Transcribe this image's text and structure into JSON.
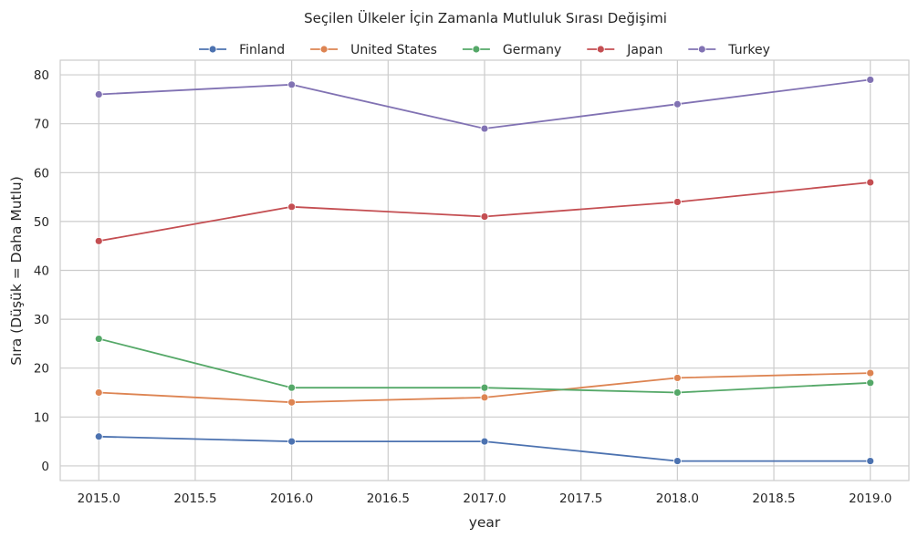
{
  "chart_data": {
    "type": "line",
    "title": "Seçilen Ülkeler İçin Zamanla Mutluluk Sırası Değişimi",
    "xlabel": "year",
    "ylabel": "Sıra (Düşük = Daha Mutlu)",
    "x": [
      2015,
      2016,
      2017,
      2018,
      2019
    ],
    "xlim": [
      2014.8,
      2019.2
    ],
    "ylim": [
      83,
      -3
    ],
    "y_inverted": true,
    "x_ticks": [
      "2015.0",
      "2015.5",
      "2016.0",
      "2016.5",
      "2017.0",
      "2017.5",
      "2018.0",
      "2018.5",
      "2019.0"
    ],
    "y_ticks": [
      "0",
      "10",
      "20",
      "30",
      "40",
      "50",
      "60",
      "70",
      "80"
    ],
    "grid": true,
    "legend_position": "top-center",
    "series": [
      {
        "name": "Finland",
        "color": "#4c72b0",
        "values": [
          6,
          5,
          5,
          1,
          1
        ]
      },
      {
        "name": "United States",
        "color": "#dd8452",
        "values": [
          15,
          13,
          14,
          18,
          19
        ]
      },
      {
        "name": "Germany",
        "color": "#55a868",
        "values": [
          26,
          16,
          16,
          15,
          17
        ]
      },
      {
        "name": "Japan",
        "color": "#c44e52",
        "values": [
          46,
          53,
          51,
          54,
          58
        ]
      },
      {
        "name": "Turkey",
        "color": "#8172b3",
        "values": [
          76,
          78,
          69,
          74,
          79
        ]
      }
    ]
  }
}
